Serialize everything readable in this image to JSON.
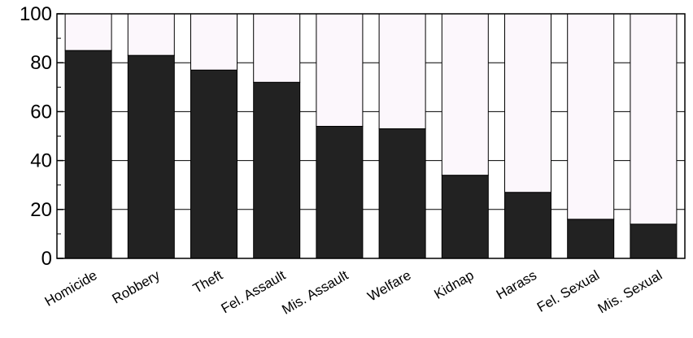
{
  "chart_data": {
    "type": "bar",
    "stacked": true,
    "categories": [
      "Homicide",
      "Robbery",
      "Theft",
      "Fel. Assault",
      "Mis. Assault",
      "Welfare",
      "Kidnap",
      "Harass",
      "Fel. Sexual",
      "Mis. Sexual"
    ],
    "series": [
      {
        "values": [
          85,
          83,
          77,
          72,
          54,
          53,
          34,
          27,
          16,
          14
        ],
        "color": "#222222"
      },
      {
        "values": [
          15,
          17,
          23,
          28,
          46,
          47,
          66,
          73,
          84,
          86
        ],
        "color": "#fcf7fc"
      }
    ],
    "ylim": [
      0,
      100
    ],
    "yticks": [
      "0",
      "20",
      "40",
      "60",
      "80",
      "100"
    ],
    "grid": true,
    "title": "",
    "xlabel": "",
    "ylabel": ""
  }
}
